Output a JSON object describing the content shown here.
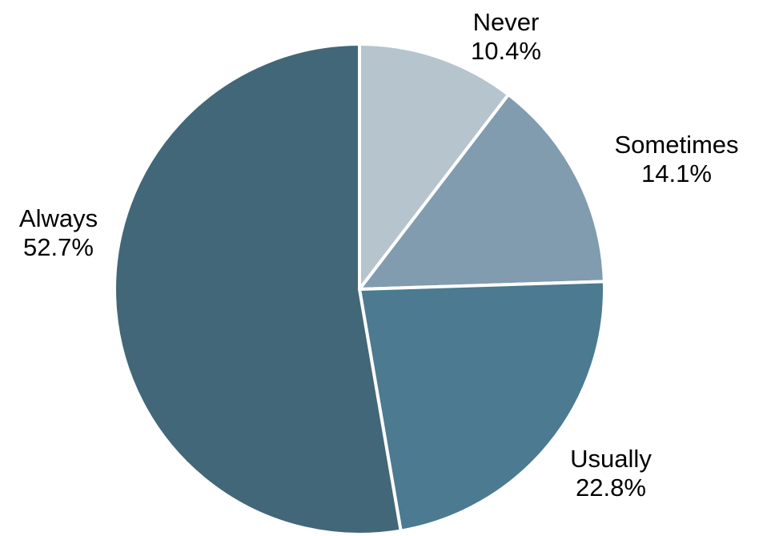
{
  "chart_data": {
    "type": "pie",
    "start": "top",
    "direction": "clockwise",
    "slices": [
      {
        "label": "Never",
        "value": 10.4,
        "value_label": "10.4%",
        "color": "#b6c4cd"
      },
      {
        "label": "Sometimes",
        "value": 14.1,
        "value_label": "14.1%",
        "color": "#809cae"
      },
      {
        "label": "Usually",
        "value": 22.8,
        "value_label": "22.8%",
        "color": "#4b7a91"
      },
      {
        "label": "Always",
        "value": 52.7,
        "value_label": "52.7%",
        "color": "#426779"
      }
    ]
  }
}
